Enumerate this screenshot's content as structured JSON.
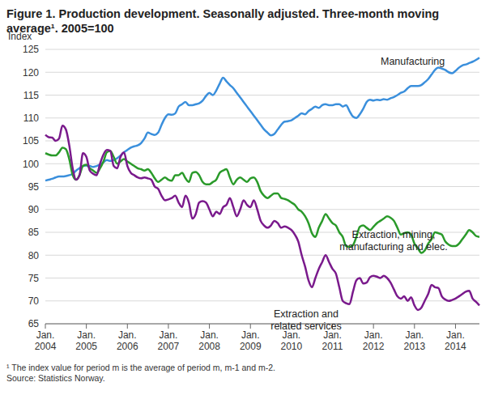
{
  "chart_data": {
    "type": "line",
    "title": "Figure 1. Production development. Seasonally adjusted. Three-month moving average¹. 2005=100",
    "y_label": "Index",
    "footnote": "¹ The index value for period m is the average of period m, m-1 and m-2.",
    "source": "Source: Statistics Norway.",
    "grid": true,
    "legend": "none",
    "ylim": [
      65,
      125
    ],
    "yticks": [
      65,
      70,
      75,
      80,
      85,
      90,
      95,
      100,
      105,
      110,
      115,
      120,
      125
    ],
    "categories": [
      "Jan. 2004",
      null,
      null,
      null,
      null,
      null,
      null,
      null,
      null,
      null,
      null,
      null,
      "Jan. 2005",
      null,
      null,
      null,
      null,
      null,
      null,
      null,
      null,
      null,
      null,
      null,
      "Jan. 2006",
      null,
      null,
      null,
      null,
      null,
      null,
      null,
      null,
      null,
      null,
      null,
      "Jan. 2007",
      null,
      null,
      null,
      null,
      null,
      null,
      null,
      null,
      null,
      null,
      null,
      "Jan. 2008",
      null,
      null,
      null,
      null,
      null,
      null,
      null,
      null,
      null,
      null,
      null,
      "Jan. 2009",
      null,
      null,
      null,
      null,
      null,
      null,
      null,
      null,
      null,
      null,
      null,
      "Jan. 2010",
      null,
      null,
      null,
      null,
      null,
      null,
      null,
      null,
      null,
      null,
      null,
      "Jan. 2011",
      null,
      null,
      null,
      null,
      null,
      null,
      null,
      null,
      null,
      null,
      null,
      "Jan. 2012",
      null,
      null,
      null,
      null,
      null,
      null,
      null,
      null,
      null,
      null,
      null,
      "Jan. 2013",
      null,
      null,
      null,
      null,
      null,
      null,
      null,
      null,
      null,
      null,
      null,
      "Jan. 2014",
      null,
      null,
      null,
      null,
      null,
      null,
      null
    ],
    "series": [
      {
        "name": "Manufacturing",
        "color": "#3a8fdc",
        "values": [
          96.3,
          96.5,
          96.7,
          97,
          97.2,
          97.2,
          97.3,
          97.5,
          97.8,
          98.5,
          99,
          99.5,
          99.6,
          99.5,
          99.3,
          99.5,
          99.8,
          100.3,
          100.8,
          100.6,
          100.8,
          101.2,
          101.8,
          102.5,
          103,
          103.5,
          103.8,
          104,
          104.5,
          105.5,
          106.8,
          106.5,
          106.3,
          106.8,
          108.5,
          110,
          110.8,
          110.7,
          111,
          112.5,
          113,
          113.5,
          112.8,
          112.8,
          113,
          113.2,
          113.8,
          114.8,
          115.5,
          115,
          116,
          117.5,
          118.8,
          118,
          117.2,
          116.5,
          115.5,
          114.5,
          113.5,
          112.5,
          111.5,
          110.5,
          109.5,
          108.5,
          107.5,
          106.8,
          106.2,
          106.5,
          107.5,
          108.5,
          109.2,
          109.3,
          109.5,
          110,
          110.5,
          111,
          110.8,
          111.5,
          112,
          112.5,
          112.2,
          112.8,
          113,
          112.8,
          112.8,
          113,
          113,
          112.5,
          112.8,
          111.5,
          110.3,
          110,
          110.8,
          112,
          113.5,
          114,
          113.8,
          114,
          113.9,
          114.1,
          114,
          114.3,
          114.6,
          115,
          115.5,
          115.8,
          116.5,
          117,
          117,
          117,
          117.2,
          117.8,
          118.5,
          119.5,
          120.5,
          121,
          120.8,
          120.5,
          120,
          119.8,
          120.3,
          121,
          121.5,
          121.7,
          122,
          122.3,
          122.7,
          123.2
        ]
      },
      {
        "name": "Extraction, mining, manufacturing and elec.",
        "color": "#2a9a2a",
        "values": [
          102.3,
          102,
          101.8,
          101.8,
          102.5,
          103.5,
          103.2,
          101,
          97.5,
          96.5,
          97.5,
          99.5,
          99.8,
          99,
          98.5,
          98,
          99,
          100.5,
          102.5,
          102.8,
          101.5,
          100,
          100.5,
          101,
          100.5,
          100,
          99.5,
          99,
          98.8,
          98.5,
          98.8,
          98,
          96.8,
          96,
          96.5,
          97,
          96.5,
          96.3,
          97.5,
          97.5,
          98,
          96.8,
          96,
          98,
          98.2,
          97.5,
          96,
          95.5,
          95.5,
          96,
          96.5,
          98,
          98.5,
          98.8,
          97,
          95.5,
          96.5,
          97,
          96.5,
          96,
          96.8,
          97,
          96,
          94,
          93,
          92.5,
          93,
          93.5,
          93.5,
          92.5,
          92.3,
          92,
          91.5,
          91,
          90,
          89.5,
          88.5,
          87,
          84.8,
          84,
          86,
          87.5,
          89,
          88,
          87,
          86.5,
          85,
          84,
          82,
          81.8,
          82.2,
          84,
          86.2,
          86.5,
          86,
          85.5,
          86.2,
          87,
          87.5,
          88,
          88.5,
          88.2,
          87.5,
          86,
          84.5,
          84.8,
          85,
          84.5,
          82.5,
          81.5,
          80.5,
          81,
          82.5,
          83.5,
          85,
          84.8,
          84.5,
          83,
          82.3,
          82,
          82,
          82.5,
          83.5,
          84.5,
          85.5,
          85,
          84.2,
          84
        ]
      },
      {
        "name": "Extraction and related services",
        "color": "#7a1a8c",
        "values": [
          106.3,
          105.8,
          105.7,
          105,
          105.5,
          108.3,
          107.5,
          104,
          99,
          96.5,
          97.5,
          102.3,
          101.5,
          98.5,
          97.8,
          97.5,
          100,
          102,
          103,
          102.8,
          99.5,
          99,
          101.5,
          102.5,
          99.5,
          98,
          97.5,
          97,
          96.8,
          97,
          96.8,
          96.5,
          95,
          94.5,
          93,
          92,
          92.2,
          92.5,
          93,
          91.5,
          90.5,
          93,
          91.5,
          88,
          89,
          91.5,
          91.8,
          91.5,
          90,
          88.5,
          89.5,
          89,
          90.5,
          91,
          92.5,
          90.5,
          88.5,
          90,
          92,
          91,
          90.5,
          92,
          90,
          87.5,
          86.5,
          86,
          86.5,
          87.5,
          87,
          86,
          86.3,
          86,
          85.5,
          84.5,
          83,
          80,
          77.5,
          74.5,
          73,
          75,
          77,
          78.5,
          80,
          78.5,
          77,
          76,
          73,
          70,
          69.5,
          69.3,
          72,
          74.5,
          75,
          73.8,
          74,
          75.2,
          75.5,
          75.3,
          75,
          75.5,
          75,
          74,
          72.5,
          71,
          70.5,
          71,
          70,
          70.8,
          69,
          68,
          68.5,
          70,
          71.5,
          73.5,
          73,
          72.8,
          71,
          70.3,
          70,
          70.2,
          70.5,
          71,
          71.5,
          72,
          72.2,
          70.5,
          69.8,
          69
        ]
      }
    ]
  }
}
